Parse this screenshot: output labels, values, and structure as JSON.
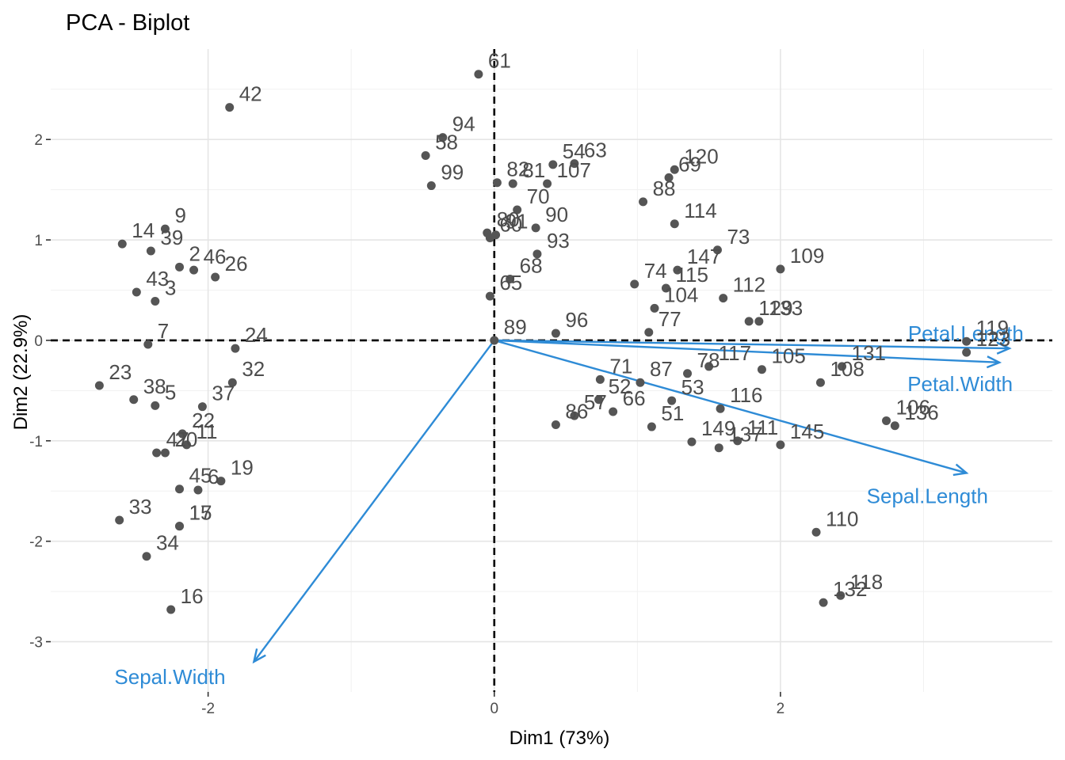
{
  "chart_data": {
    "type": "scatter",
    "title": "PCA - Biplot",
    "xlabel": "Dim1 (73%)",
    "ylabel": "Dim2 (22.9%)",
    "xlim": [
      -3.1,
      3.9
    ],
    "ylim": [
      -3.5,
      2.9
    ],
    "x_ticks": [
      -2,
      0,
      2
    ],
    "y_ticks": [
      -3,
      -2,
      -1,
      0,
      1,
      2
    ],
    "x_tick_labels": [
      "-2",
      "0",
      "2"
    ],
    "y_tick_labels": [
      "-3",
      "-2",
      "-1",
      "0",
      "1",
      "2"
    ],
    "grid": true,
    "point_color": "#555555",
    "variable_color": "#2e8bd6",
    "points": [
      {
        "label": "42",
        "x": -1.85,
        "y": 2.32
      },
      {
        "label": "9",
        "x": -2.3,
        "y": 1.11
      },
      {
        "label": "14",
        "x": -2.6,
        "y": 0.96
      },
      {
        "label": "39",
        "x": -2.4,
        "y": 0.89
      },
      {
        "label": "2",
        "x": -2.2,
        "y": 0.73
      },
      {
        "label": "46",
        "x": -2.1,
        "y": 0.7
      },
      {
        "label": "26",
        "x": -1.95,
        "y": 0.63
      },
      {
        "label": "43",
        "x": -2.5,
        "y": 0.48
      },
      {
        "label": "3",
        "x": -2.37,
        "y": 0.39
      },
      {
        "label": "24",
        "x": -1.81,
        "y": -0.08
      },
      {
        "label": "7",
        "x": -2.42,
        "y": -0.04
      },
      {
        "label": "23",
        "x": -2.76,
        "y": -0.45
      },
      {
        "label": "32",
        "x": -1.83,
        "y": -0.42
      },
      {
        "label": "37",
        "x": -2.04,
        "y": -0.66
      },
      {
        "label": "38",
        "x": -2.52,
        "y": -0.59
      },
      {
        "label": "5",
        "x": -2.37,
        "y": -0.65
      },
      {
        "label": "22",
        "x": -2.18,
        "y": -0.93
      },
      {
        "label": "11",
        "x": -2.15,
        "y": -1.04
      },
      {
        "label": "47",
        "x": -2.36,
        "y": -1.12
      },
      {
        "label": "20",
        "x": -2.3,
        "y": -1.12
      },
      {
        "label": "45",
        "x": -2.2,
        "y": -1.48
      },
      {
        "label": "19",
        "x": -1.91,
        "y": -1.4
      },
      {
        "label": "6",
        "x": -2.07,
        "y": -1.49
      },
      {
        "label": "17",
        "x": -2.2,
        "y": -1.85
      },
      {
        "label": "33",
        "x": -2.62,
        "y": -1.79
      },
      {
        "label": "15",
        "x": -2.2,
        "y": -1.85
      },
      {
        "label": "34",
        "x": -2.43,
        "y": -2.15
      },
      {
        "label": "16",
        "x": -2.26,
        "y": -2.68
      },
      {
        "label": "61",
        "x": -0.11,
        "y": 2.65
      },
      {
        "label": "94",
        "x": -0.36,
        "y": 2.02
      },
      {
        "label": "58",
        "x": -0.48,
        "y": 1.84
      },
      {
        "label": "99",
        "x": -0.44,
        "y": 1.54
      },
      {
        "label": "54",
        "x": 0.41,
        "y": 1.75
      },
      {
        "label": "63",
        "x": 0.56,
        "y": 1.76
      },
      {
        "label": "82",
        "x": 0.02,
        "y": 1.57
      },
      {
        "label": "81",
        "x": 0.13,
        "y": 1.56
      },
      {
        "label": "107",
        "x": 0.37,
        "y": 1.56
      },
      {
        "label": "69",
        "x": 1.22,
        "y": 1.62
      },
      {
        "label": "120",
        "x": 1.26,
        "y": 1.7
      },
      {
        "label": "70",
        "x": 0.16,
        "y": 1.3
      },
      {
        "label": "80",
        "x": -0.05,
        "y": 1.07
      },
      {
        "label": "91",
        "x": 0.01,
        "y": 1.05
      },
      {
        "label": "90",
        "x": 0.29,
        "y": 1.12
      },
      {
        "label": "88",
        "x": 1.04,
        "y": 1.38
      },
      {
        "label": "114",
        "x": 1.26,
        "y": 1.16
      },
      {
        "label": "73",
        "x": 1.56,
        "y": 0.9
      },
      {
        "label": "60",
        "x": -0.03,
        "y": 1.02
      },
      {
        "label": "93",
        "x": 0.3,
        "y": 0.86
      },
      {
        "label": "109",
        "x": 2.0,
        "y": 0.71
      },
      {
        "label": "147",
        "x": 1.28,
        "y": 0.7
      },
      {
        "label": "112",
        "x": 1.6,
        "y": 0.42
      },
      {
        "label": "68",
        "x": 0.11,
        "y": 0.61
      },
      {
        "label": "74",
        "x": 0.98,
        "y": 0.56
      },
      {
        "label": "115",
        "x": 1.2,
        "y": 0.52
      },
      {
        "label": "129",
        "x": 1.78,
        "y": 0.19
      },
      {
        "label": "133",
        "x": 1.85,
        "y": 0.19
      },
      {
        "label": "65",
        "x": -0.03,
        "y": 0.44
      },
      {
        "label": "104",
        "x": 1.12,
        "y": 0.32
      },
      {
        "label": "119",
        "x": 3.3,
        "y": -0.01
      },
      {
        "label": "77",
        "x": 1.08,
        "y": 0.08
      },
      {
        "label": "89",
        "x": 0.0,
        "y": 0.0
      },
      {
        "label": "96",
        "x": 0.43,
        "y": 0.07
      },
      {
        "label": "117",
        "x": 1.5,
        "y": -0.26
      },
      {
        "label": "105",
        "x": 1.87,
        "y": -0.29
      },
      {
        "label": "123",
        "x": 3.3,
        "y": -0.12
      },
      {
        "label": "78",
        "x": 1.35,
        "y": -0.33
      },
      {
        "label": "131",
        "x": 2.43,
        "y": -0.26
      },
      {
        "label": "71",
        "x": 0.74,
        "y": -0.39
      },
      {
        "label": "87",
        "x": 1.02,
        "y": -0.42
      },
      {
        "label": "108",
        "x": 2.28,
        "y": -0.42
      },
      {
        "label": "53",
        "x": 1.24,
        "y": -0.6
      },
      {
        "label": "116",
        "x": 1.58,
        "y": -0.68
      },
      {
        "label": "52",
        "x": 0.73,
        "y": -0.59
      },
      {
        "label": "66",
        "x": 0.83,
        "y": -0.71
      },
      {
        "label": "106",
        "x": 2.74,
        "y": -0.8
      },
      {
        "label": "136",
        "x": 2.8,
        "y": -0.85
      },
      {
        "label": "86",
        "x": 0.43,
        "y": -0.84
      },
      {
        "label": "57",
        "x": 0.56,
        "y": -0.75
      },
      {
        "label": "51",
        "x": 1.1,
        "y": -0.86
      },
      {
        "label": "111",
        "x": 1.7,
        "y": -1.0
      },
      {
        "label": "149",
        "x": 1.38,
        "y": -1.01
      },
      {
        "label": "137",
        "x": 1.57,
        "y": -1.07
      },
      {
        "label": "145",
        "x": 2.0,
        "y": -1.04
      },
      {
        "label": "110",
        "x": 2.25,
        "y": -1.91
      },
      {
        "label": "118",
        "x": 2.42,
        "y": -2.54
      },
      {
        "label": "132",
        "x": 2.3,
        "y": -2.61
      }
    ],
    "variables": [
      {
        "name": "Petal.Length",
        "x": 3.6,
        "y": -0.08
      },
      {
        "name": "Petal.Width",
        "x": 3.53,
        "y": -0.22
      },
      {
        "name": "Sepal.Length",
        "x": 3.3,
        "y": -1.32
      },
      {
        "name": "Sepal.Width",
        "x": -1.68,
        "y": -3.2
      }
    ]
  }
}
